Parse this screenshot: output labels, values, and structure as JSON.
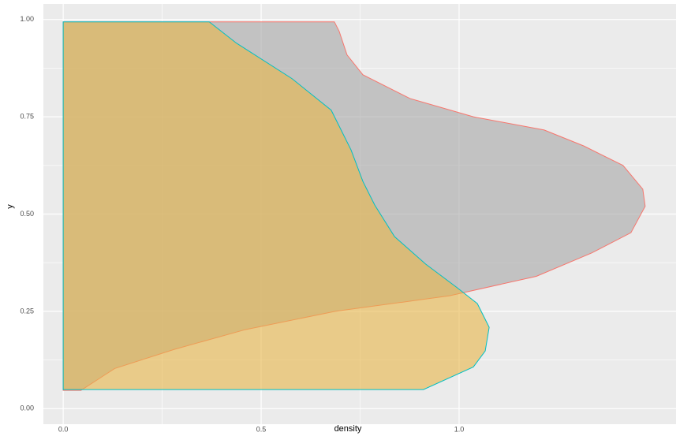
{
  "chart_data": {
    "type": "density",
    "x_label": "density",
    "y_label": "y",
    "xlim": [
      -0.05,
      1.548
    ],
    "ylim": [
      -0.04,
      1.04
    ],
    "xticks": [
      {
        "value": 0,
        "label": "0.0"
      },
      0.5,
      {
        "value": 1,
        "label": "1.0"
      }
    ],
    "yticks": [
      {
        "value": 0,
        "label": "0.00"
      },
      0.25,
      {
        "value": 0.5,
        "label": "0.50"
      },
      0.75,
      {
        "value": 1,
        "label": "1.00"
      }
    ],
    "grid": true,
    "series": [
      {
        "color": "#f8766d",
        "fill": "#a6a6a6",
        "y": [
          0.047,
          0.103,
          0.152,
          0.203,
          0.25,
          0.29,
          0.34,
          0.4,
          0.452,
          0.52,
          0.564,
          0.625,
          0.675,
          0.716,
          0.75,
          0.797,
          0.858,
          0.909,
          0.97,
          0.994
        ],
        "values": [
          0.045,
          0.13,
          0.28,
          0.46,
          0.687,
          0.976,
          1.195,
          1.335,
          1.434,
          1.47,
          1.464,
          1.414,
          1.315,
          1.215,
          1.036,
          0.876,
          0.757,
          0.717,
          0.697,
          0.685
        ]
      },
      {
        "color": "#00bfc4",
        "fill": "#e7b547",
        "y": [
          0.049,
          0.107,
          0.148,
          0.209,
          0.27,
          0.31,
          0.371,
          0.442,
          0.523,
          0.584,
          0.665,
          0.767,
          0.848,
          0.939,
          0.994
        ],
        "values": [
          0.91,
          1.036,
          1.066,
          1.076,
          1.046,
          0.996,
          0.916,
          0.837,
          0.787,
          0.757,
          0.727,
          0.677,
          0.578,
          0.438,
          0.369
        ]
      }
    ]
  }
}
